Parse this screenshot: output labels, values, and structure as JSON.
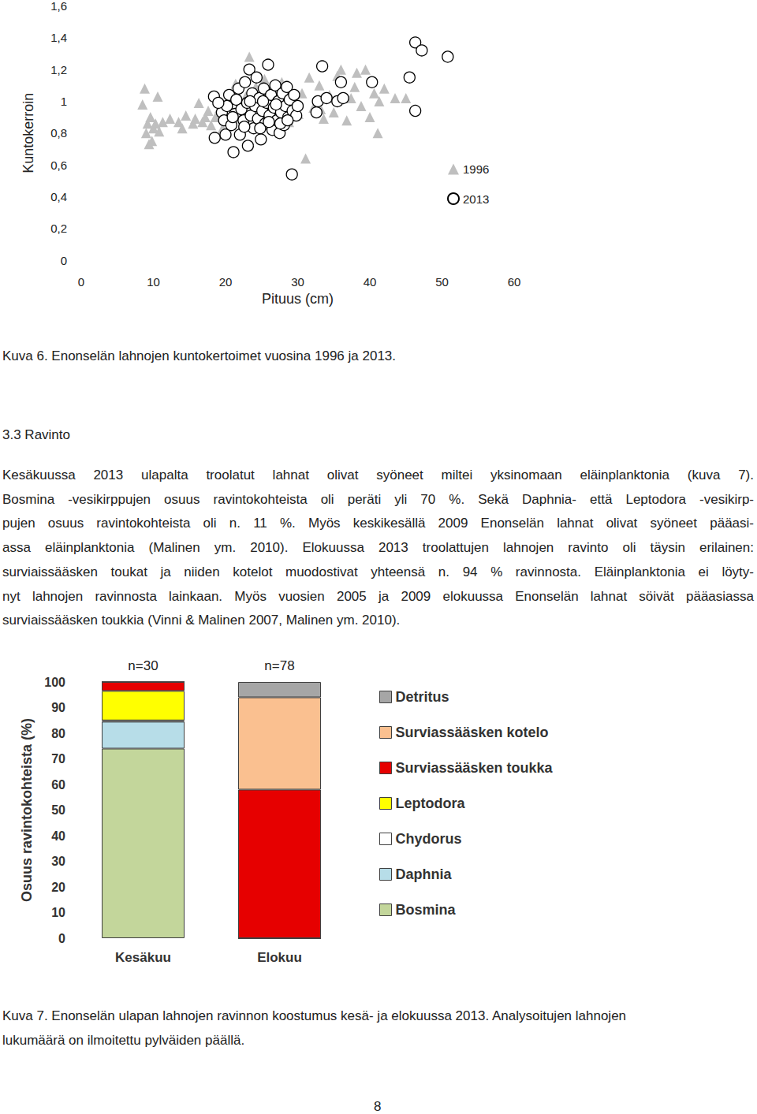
{
  "chart_data": [
    {
      "type": "scatter",
      "x_label": "Pituus (cm)",
      "y_label": "Kuntokerroin",
      "xlim": [
        0,
        60
      ],
      "xticks": [
        0,
        10,
        20,
        30,
        40,
        50,
        60
      ],
      "ylim": [
        0,
        1.6
      ],
      "yticks": [
        0,
        {
          "value": 0.2,
          "label": "0,2"
        },
        {
          "value": 0.4,
          "label": "0,4"
        },
        {
          "value": 0.6,
          "label": "0,6"
        },
        {
          "value": 0.8,
          "label": "0,8"
        },
        1,
        {
          "value": 1.2,
          "label": "1,2"
        },
        {
          "value": 1.4,
          "label": "1,4"
        },
        {
          "value": 1.6,
          "label": "1,6"
        }
      ],
      "grid": false,
      "legend": "right",
      "series": [
        {
          "name": "1996",
          "color": "#bfbfbf",
          "marker": "triangle",
          "x": [
            8.5,
            8.8,
            9.0,
            9.2,
            9.4,
            9.6,
            9.8,
            10.0,
            10.6,
            10.3,
            10.8,
            11.3,
            12.3,
            13.5,
            14.0,
            14.5,
            15.5,
            15.8,
            16.3,
            16.8,
            17.2,
            17.6,
            18.0,
            18.6,
            19.2,
            19.6,
            20.3,
            20.7,
            21.4,
            21.9,
            22.4,
            22.8,
            23.3,
            23.6,
            24.2,
            24.6,
            25.0,
            25.4,
            25.8,
            26.2,
            26.6,
            27.0,
            27.4,
            27.8,
            28.2,
            28.8,
            29.4,
            30.1,
            30.6,
            31.1,
            31.6,
            32.2,
            33.0,
            33.6,
            34.4,
            35.0,
            35.5,
            36.0,
            36.8,
            37.4,
            38.2,
            38.8,
            39.4,
            40.0,
            40.6,
            41.1,
            41.3,
            42.0,
            43.5,
            45.0,
            33.2,
            37.9
          ],
          "values": [
            0.98,
            1.08,
            0.8,
            0.86,
            0.73,
            0.9,
            0.75,
            0.83,
            1.03,
            0.86,
            0.81,
            0.87,
            0.89,
            0.87,
            0.83,
            0.91,
            0.86,
            0.89,
            0.99,
            0.87,
            0.9,
            0.94,
            0.85,
            0.9,
            0.96,
            0.83,
            1.01,
            0.89,
            1.11,
            0.95,
            0.86,
            1.03,
            1.28,
            0.92,
            1.09,
            0.98,
            0.87,
            1.14,
            0.95,
            1.06,
            0.9,
            1.03,
            0.93,
            1.12,
            0.97,
            0.87,
            1.0,
            0.92,
            1.05,
            0.64,
            1.15,
            0.96,
            1.1,
            0.89,
            1.04,
            0.93,
            1.16,
            1.2,
            0.88,
            1.02,
            1.18,
            0.97,
            1.2,
            0.9,
            1.05,
            0.8,
            1.0,
            1.08,
            1.02,
            1.02,
            0.95,
            1.09
          ]
        },
        {
          "name": "2013",
          "color": "#000000",
          "marker": "circle-open",
          "x": [
            18.4,
            18.5,
            19.5,
            19.8,
            20.2,
            20.5,
            20.8,
            21.1,
            21.3,
            21.5,
            21.8,
            22.0,
            22.2,
            22.5,
            22.7,
            23.0,
            23.1,
            23.3,
            23.5,
            23.7,
            23.9,
            24.1,
            24.3,
            24.5,
            24.7,
            24.9,
            25.1,
            25.3,
            25.5,
            25.7,
            25.9,
            26.1,
            26.3,
            26.5,
            26.7,
            26.9,
            27.1,
            27.3,
            27.5,
            27.7,
            27.9,
            28.1,
            28.3,
            28.5,
            28.7,
            28.9,
            29.2,
            29.3,
            29.5,
            29.8,
            30.0,
            32.6,
            32.8,
            33.4,
            34.0,
            35.5,
            36.0,
            36.3,
            40.3,
            45.5,
            46.3,
            46.3,
            47.2,
            50.8,
            20.0,
            22.6,
            24.8,
            26.0,
            27.6,
            28.6,
            19.0,
            21.0,
            23.4,
            25.2,
            27.0
          ],
          "values": [
            1.03,
            0.77,
            0.93,
            0.88,
            0.97,
            1.04,
            0.85,
            0.68,
            0.92,
            1.01,
            1.08,
            0.79,
            0.95,
            0.88,
            1.12,
            0.99,
            0.72,
            1.2,
            0.91,
            1.05,
            0.83,
            0.97,
            1.15,
            0.89,
            1.02,
            0.76,
            0.94,
            1.08,
            0.86,
            0.99,
            1.23,
            0.91,
            1.04,
            0.82,
            0.96,
            1.1,
            0.88,
            1.0,
            0.8,
            0.93,
            1.05,
            0.85,
            0.97,
            1.09,
            0.9,
            1.01,
            0.54,
            0.94,
            1.04,
            0.91,
            0.97,
            0.93,
            1.0,
            1.22,
            1.02,
            1.0,
            1.12,
            1.02,
            1.12,
            1.15,
            0.94,
            1.37,
            1.32,
            1.28,
            0.79,
            0.84,
            0.83,
            0.87,
            0.86,
            0.88,
            0.99,
            0.9,
            1.0,
            1.0,
            0.98
          ]
        }
      ]
    },
    {
      "type": "bar",
      "stacked": true,
      "y_label": "Osuus ravintokohteista (%)",
      "categories": [
        "Kesäkuu",
        "Elokuu"
      ],
      "annotations": [
        "n=30",
        "n=78"
      ],
      "ylim": [
        0,
        100
      ],
      "yticks": [
        0,
        10,
        20,
        30,
        40,
        50,
        60,
        70,
        80,
        90,
        100
      ],
      "grid": false,
      "legend": "right",
      "series": [
        {
          "name": "Bosmina",
          "color": "#c3d69b",
          "values": [
            74,
            0
          ]
        },
        {
          "name": "Daphnia",
          "color": "#b7dde8",
          "values": [
            10.5,
            0
          ]
        },
        {
          "name": "Chydorus",
          "color": "#ffffff",
          "values": [
            0.5,
            0
          ]
        },
        {
          "name": "Leptodora",
          "color": "#ffff00",
          "values": [
            11.5,
            0
          ]
        },
        {
          "name": "Surviassääsken toukka",
          "color": "#e60000",
          "values": [
            3.5,
            58
          ]
        },
        {
          "name": "Surviassääsken kotelo",
          "color": "#fac090",
          "values": [
            0,
            36
          ]
        },
        {
          "name": "Detritus",
          "color": "#a6a6a6",
          "values": [
            0,
            6
          ]
        }
      ]
    }
  ],
  "document": {
    "caption_1": "Kuva 6. Enonselän lahnojen kuntokertoimet vuosina 1996 ja 2013.",
    "section_title": "3.3 Ravinto",
    "paragraph_lines": [
      "Kesäkuussa 2013 ulapalta troolatut lahnat olivat syöneet miltei yksinomaan eläinplanktonia (kuva 7).",
      "Bosmina -vesikirppujen osuus ravintokohteista oli peräti yli 70 %. Sekä Daphnia- että Leptodora -vesikirp-",
      "pujen osuus ravintokohteista oli n. 11 %. Myös keskikesällä 2009 Enonselän lahnat olivat syöneet pääasi-",
      "assa eläinplanktonia (Malinen ym. 2010). Elokuussa 2013 troolattujen lahnojen ravinto oli täysin erilainen:",
      "surviaissääsken toukat ja niiden kotelot muodostivat yhteensä n. 94 % ravinnosta. Eläinplanktonia ei löyty-",
      "nyt lahnojen ravinnosta lainkaan. Myös vuosien 2005 ja 2009 elokuussa Enonselän lahnat söivät pääasiassa",
      "surviaissääsken toukkia (Vinni & Malinen 2007, Malinen ym. 2010)."
    ],
    "caption_2_lines": [
      "Kuva 7. Enonselän ulapan lahnojen ravinnon koostumus kesä- ja elokuussa 2013. Analysoitujen lahnojen",
      "lukumäärä on ilmoitettu pylväiden päällä."
    ],
    "page_number": "8"
  }
}
